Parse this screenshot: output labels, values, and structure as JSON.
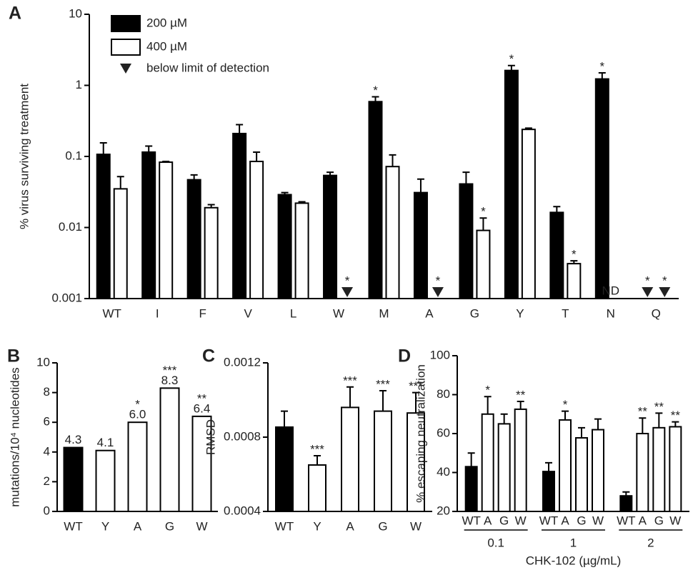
{
  "chart_data": [
    {
      "type": "grouped_bar",
      "panel_label": "A",
      "y_label": "% virus  surviving treatment",
      "log_scale": true,
      "ylim": [
        0.001,
        10
      ],
      "yticks": [
        0.001,
        0.01,
        0.1,
        1,
        10
      ],
      "categories": [
        "WT",
        "I",
        "F",
        "V",
        "L",
        "W",
        "M",
        "A",
        "G",
        "Y",
        "T",
        "N",
        "Q"
      ],
      "below_limit_label": "below limit of detection",
      "series": [
        {
          "name": "200 µM",
          "color": "#000000",
          "values": [
            0.107,
            0.115,
            0.047,
            0.21,
            0.029,
            0.054,
            0.59,
            0.031,
            0.041,
            1.62,
            0.0163,
            1.23,
            null
          ],
          "errors": [
            0.048,
            0.025,
            0.008,
            0.07,
            0.002,
            0.006,
            0.1,
            0.017,
            0.019,
            0.28,
            0.0034,
            0.27,
            null
          ],
          "significance": [
            null,
            null,
            null,
            null,
            null,
            null,
            "*",
            null,
            null,
            "*",
            null,
            "*",
            "*"
          ],
          "below_limit": [
            false,
            false,
            false,
            false,
            false,
            false,
            false,
            false,
            false,
            false,
            false,
            false,
            true
          ]
        },
        {
          "name": "400 µM",
          "color": "#ffffff",
          "values": [
            0.035,
            0.083,
            0.019,
            0.085,
            0.022,
            null,
            0.072,
            null,
            0.0091,
            0.24,
            0.0031,
            null,
            null
          ],
          "errors": [
            0.017,
            0.002,
            0.002,
            0.03,
            0.001,
            null,
            0.033,
            null,
            0.0045,
            0.01,
            0.0003,
            null,
            null
          ],
          "value_labels": [
            null,
            null,
            null,
            null,
            null,
            null,
            null,
            null,
            null,
            null,
            null,
            "ND",
            null
          ],
          "significance": [
            null,
            null,
            null,
            null,
            null,
            "*",
            null,
            "*",
            "*",
            null,
            "*",
            null,
            "*"
          ],
          "below_limit": [
            false,
            false,
            false,
            false,
            false,
            true,
            false,
            true,
            false,
            false,
            false,
            false,
            true
          ]
        }
      ]
    },
    {
      "type": "bar",
      "panel_label": "B",
      "y_label": "mutations/10⁴ nucleotides",
      "ylim": [
        0,
        10
      ],
      "yticks": [
        0,
        2,
        4,
        6,
        8,
        10
      ],
      "categories": [
        "WT",
        "Y",
        "A",
        "G",
        "W"
      ],
      "colors": [
        "#000000",
        "#ffffff",
        "#ffffff",
        "#ffffff",
        "#ffffff"
      ],
      "values": [
        4.3,
        4.1,
        6,
        8.3,
        6.4
      ],
      "value_labels": [
        "4.3",
        "4.1",
        "6.0",
        "8.3",
        "6.4"
      ],
      "significance": [
        null,
        null,
        "*",
        "***",
        "**"
      ]
    },
    {
      "type": "bar",
      "panel_label": "C",
      "y_label": "RMSD",
      "ylim": [
        0.0004,
        0.0012
      ],
      "yticks": [
        0.0004,
        0.0008,
        0.0012
      ],
      "categories": [
        "WT",
        "Y",
        "A",
        "G",
        "W"
      ],
      "colors": [
        "#000000",
        "#ffffff",
        "#ffffff",
        "#ffffff",
        "#ffffff"
      ],
      "values": [
        0.000854,
        0.00065,
        0.00096,
        0.00094,
        0.00093
      ],
      "errors": [
        8.6e-05,
        5e-05,
        0.00011,
        0.00011,
        0.00011
      ],
      "significance": [
        null,
        "***",
        "***",
        "***",
        "***"
      ]
    },
    {
      "type": "grouped_by_dose",
      "panel_label": "D",
      "y_label": "% escaping neutralization",
      "x_label": "CHK-102 (µg/mL)",
      "ylim": [
        20,
        100
      ],
      "yticks": [
        20,
        40,
        60,
        80,
        100
      ],
      "categories": [
        "WT",
        "A",
        "G",
        "W"
      ],
      "colors": [
        "#000000",
        "#ffffff",
        "#ffffff",
        "#ffffff"
      ],
      "series": [
        {
          "name": "0.1",
          "values": [
            43,
            70,
            65,
            72.5
          ],
          "errors": [
            7,
            9,
            5,
            4
          ],
          "significance": [
            null,
            "*",
            null,
            "**"
          ]
        },
        {
          "name": "1",
          "values": [
            40.5,
            67,
            57.8,
            62
          ],
          "errors": [
            4.5,
            4.5,
            5.2,
            5.5
          ],
          "significance": [
            null,
            "*",
            null,
            null
          ]
        },
        {
          "name": "2",
          "values": [
            28,
            60,
            63,
            63.5
          ],
          "errors": [
            2,
            8,
            7.5,
            2.5
          ],
          "significance": [
            null,
            "**",
            "**",
            "**"
          ]
        }
      ]
    }
  ]
}
